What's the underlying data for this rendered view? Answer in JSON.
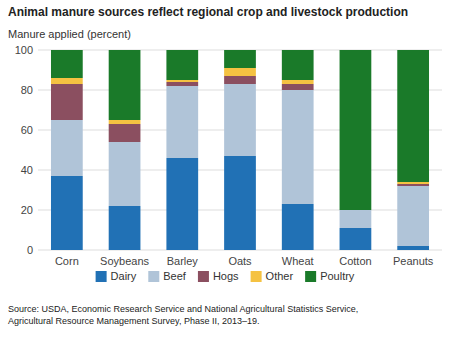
{
  "chart_data": {
    "type": "bar",
    "stacked": true,
    "title": "Animal manure sources reflect regional crop and livestock production",
    "ylabel": "Manure applied (percent)",
    "source": "Source: USDA, Economic Research Service and National Agricultural Statistics Service,\nAgricultural Resource Management Survey, Phase II, 2013–19.",
    "categories": [
      "Corn",
      "Soybeans",
      "Barley",
      "Oats",
      "Wheat",
      "Cotton",
      "Peanuts"
    ],
    "series": [
      {
        "name": "Dairy",
        "color": "#2171b5",
        "values": [
          37,
          22,
          46,
          47,
          23,
          11,
          2
        ]
      },
      {
        "name": "Beef",
        "color": "#b0c4d8",
        "values": [
          28,
          32,
          36,
          36,
          57,
          9,
          30
        ]
      },
      {
        "name": "Hogs",
        "color": "#8b4f60",
        "values": [
          18,
          9,
          2,
          4,
          3,
          0,
          1
        ]
      },
      {
        "name": "Other",
        "color": "#f5c242",
        "values": [
          3,
          2,
          1,
          4,
          2,
          0,
          1
        ]
      },
      {
        "name": "Poultry",
        "color": "#1a7a29",
        "values": [
          14,
          35,
          15,
          9,
          15,
          80,
          66
        ]
      }
    ],
    "ylim": [
      0,
      100
    ],
    "yticks": [
      0,
      20,
      40,
      60,
      80,
      100
    ],
    "grid": true,
    "legend": "bottom"
  }
}
